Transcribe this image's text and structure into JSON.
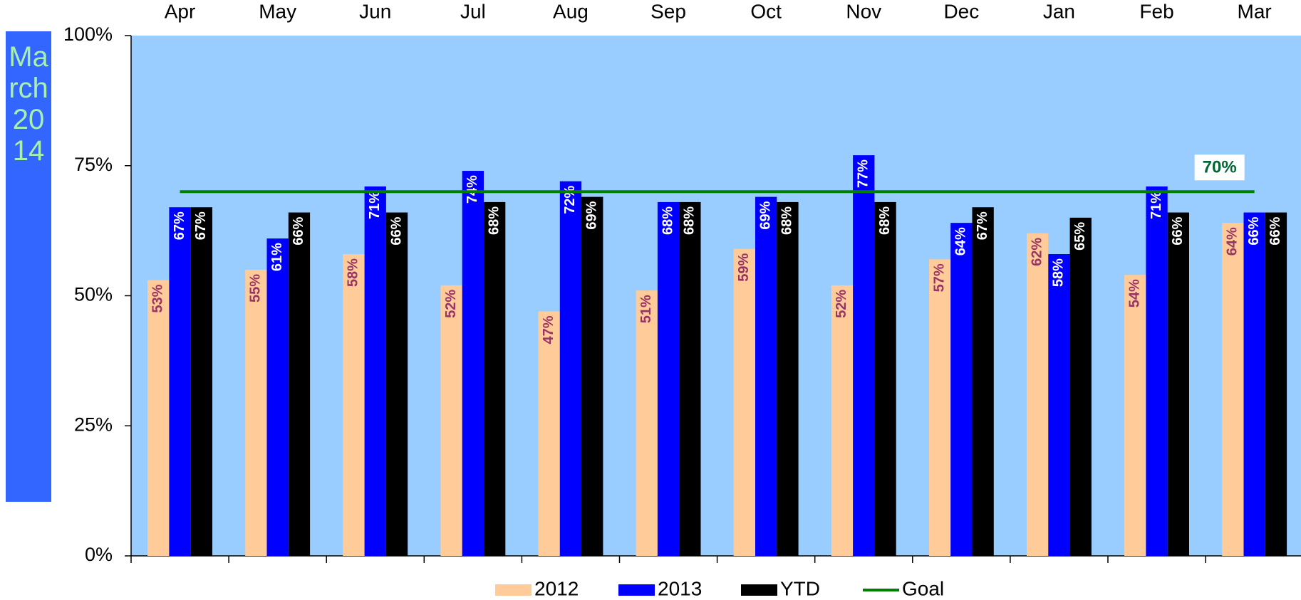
{
  "chart_data": {
    "type": "bar",
    "side_label": "March 2014",
    "categories": [
      "Apr",
      "May",
      "Jun",
      "Jul",
      "Aug",
      "Sep",
      "Oct",
      "Nov",
      "Dec",
      "Jan",
      "Feb",
      "Mar"
    ],
    "series": [
      {
        "name": "2012",
        "color": "#ffcc99",
        "label_color": "#993366",
        "values": [
          53,
          55,
          58,
          52,
          47,
          51,
          59,
          52,
          57,
          62,
          54,
          64
        ],
        "value_labels": [
          "53%",
          "55%",
          "58%",
          "52%",
          "47%",
          "51%",
          "59%",
          "52%",
          "57%",
          "62%",
          "54%",
          "64%"
        ]
      },
      {
        "name": "2013",
        "color": "#0000ff",
        "label_color": "#ffffff",
        "values": [
          67,
          61,
          71,
          74,
          72,
          68,
          69,
          77,
          64,
          58,
          71,
          66
        ],
        "value_labels": [
          "67%",
          "61%",
          "71%",
          "74%",
          "72%",
          "68%",
          "69%",
          "77%",
          "64%",
          "58%",
          "71%",
          "66%"
        ]
      },
      {
        "name": "YTD",
        "color": "#000000",
        "label_color": "#ffffff",
        "values": [
          67,
          66,
          66,
          68,
          69,
          68,
          68,
          68,
          67,
          65,
          66,
          66
        ],
        "value_labels": [
          "67%",
          "66%",
          "66%",
          "68%",
          "69%",
          "68%",
          "68%",
          "68%",
          "67%",
          "65%",
          "66%",
          "66%"
        ]
      },
      {
        "name": "Goal",
        "color": "#008000",
        "kind": "line",
        "label_color": "#006633",
        "values": [
          70,
          70,
          70,
          70,
          70,
          70,
          70,
          70,
          70,
          70,
          70,
          70
        ],
        "value_labels": [
          null,
          null,
          null,
          null,
          null,
          null,
          null,
          null,
          null,
          null,
          null,
          "70%"
        ]
      }
    ],
    "ylim": [
      0,
      100
    ],
    "yticks": [
      {
        "value": 0,
        "label": "0%"
      },
      {
        "value": 25,
        "label": "25%"
      },
      {
        "value": 50,
        "label": "50%"
      },
      {
        "value": 75,
        "label": "75%"
      },
      {
        "value": 100,
        "label": "100%"
      }
    ],
    "plot_background": "#99ccff",
    "legend": "bottom"
  }
}
